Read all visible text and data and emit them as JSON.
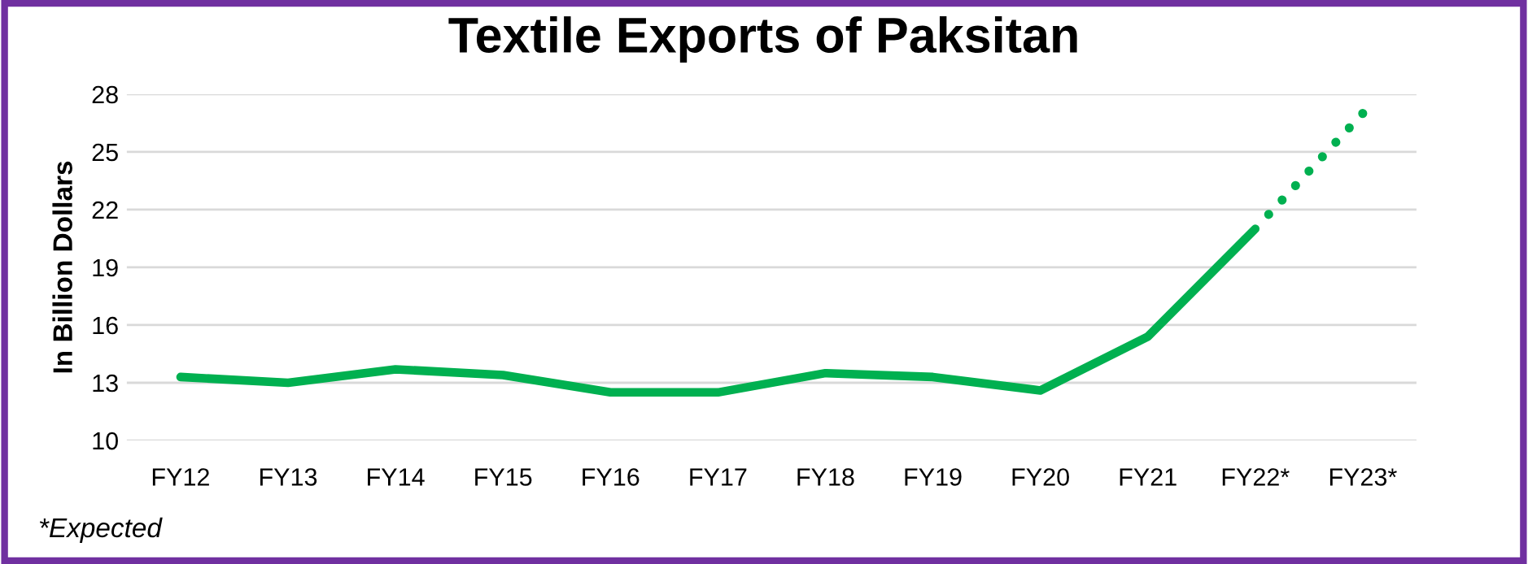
{
  "chart_data": {
    "type": "line",
    "title": "Textile Exports of Paksitan",
    "ylabel": "In Billion Dollars",
    "categories": [
      "FY12",
      "FY13",
      "FY14",
      "FY15",
      "FY16",
      "FY17",
      "FY18",
      "FY19",
      "FY20",
      "FY21",
      "FY22*",
      "FY23*"
    ],
    "series": [
      {
        "color": "#00b050",
        "line_style": "solid",
        "values": [
          13.3,
          13.0,
          13.7,
          13.4,
          12.5,
          12.5,
          13.5,
          13.3,
          12.6,
          15.4,
          21.0,
          null
        ]
      },
      {
        "color": "#00b050",
        "line_style": "dotted",
        "values": [
          null,
          null,
          null,
          null,
          null,
          null,
          null,
          null,
          null,
          null,
          21.0,
          27.0
        ]
      }
    ],
    "ylim": [
      10,
      28
    ],
    "yticks": [
      10,
      13,
      16,
      19,
      22,
      25,
      28
    ],
    "grid": "y",
    "marker": "none",
    "annotations": [
      "*Expected"
    ]
  }
}
